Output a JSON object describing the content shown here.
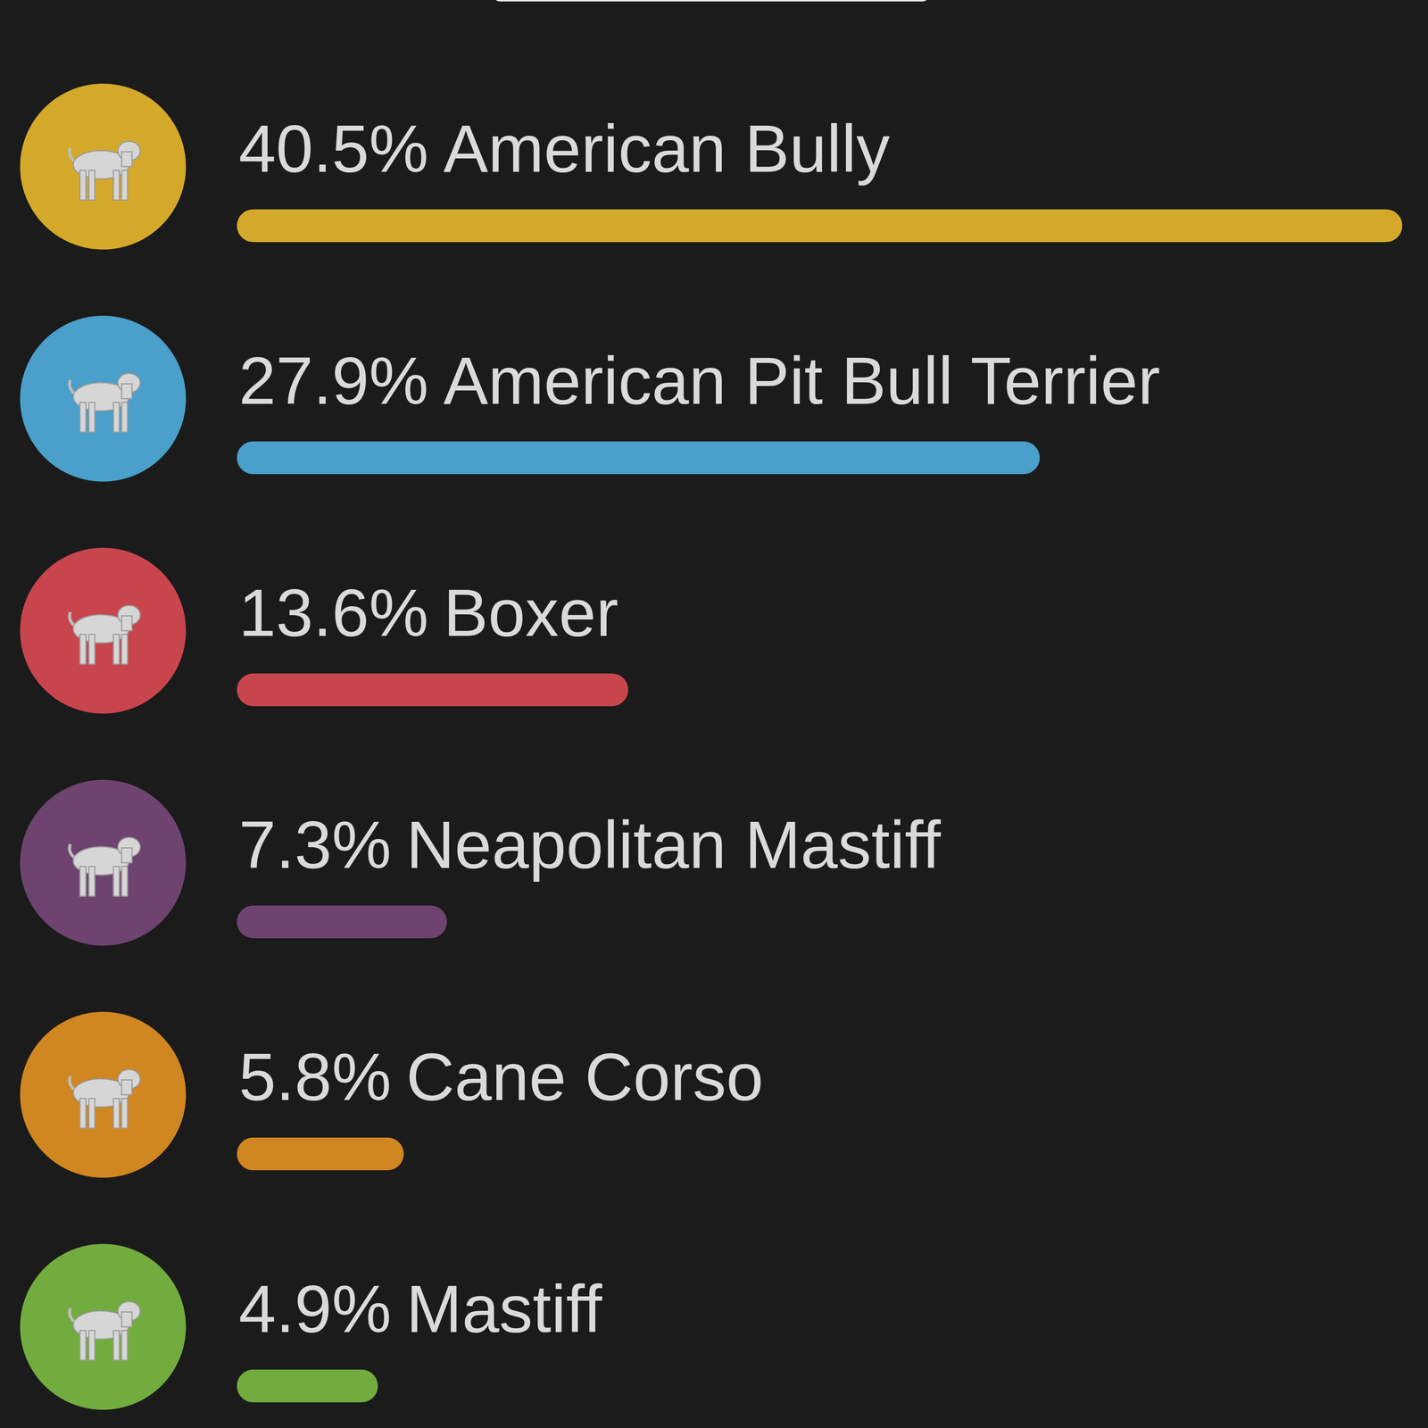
{
  "chart_data": {
    "type": "bar",
    "orientation": "horizontal",
    "categories": [
      "American Bully",
      "American Pit Bull Terrier",
      "Boxer",
      "Neapolitan Mastiff",
      "Cane Corso",
      "Mastiff"
    ],
    "values": [
      40.5,
      27.9,
      13.6,
      7.3,
      5.8,
      4.9
    ],
    "value_labels": [
      "40.5%",
      "27.9%",
      "13.6%",
      "7.3%",
      "5.8%",
      "4.9%"
    ],
    "colors": [
      "#d4a92a",
      "#4a9fcb",
      "#c9454d",
      "#6e4370",
      "#d08621",
      "#72ac3e"
    ],
    "xlim": [
      0,
      40.5
    ],
    "data_labels": true,
    "tick_labels": false,
    "grid": false
  }
}
